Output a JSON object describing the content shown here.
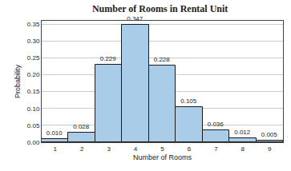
{
  "chart_data": {
    "type": "bar",
    "title": "Number of Rooms in Rental Unit",
    "x_label": "Number of Rooms",
    "y_label": "Probability",
    "categories": [
      "1",
      "2",
      "3",
      "4",
      "5",
      "6",
      "7",
      "8",
      "9"
    ],
    "values": [
      0.01,
      0.028,
      0.229,
      0.347,
      0.228,
      0.105,
      0.036,
      0.012,
      0.005
    ],
    "value_labels": [
      "0.010",
      "0.028",
      "0.229",
      "0.347",
      "0.228",
      "0.105",
      "0.036",
      "0.012",
      "0.005"
    ],
    "color": "#a9cce8",
    "ylim": [
      0,
      0.36
    ],
    "yticks": [
      {
        "value": 0,
        "label": "0.00"
      },
      {
        "value": 0.05,
        "label": "0.05"
      },
      {
        "value": 0.1,
        "label": "0.10"
      },
      {
        "value": 0.15,
        "label": "0.15"
      },
      {
        "value": 0.2,
        "label": "0.20"
      },
      {
        "value": 0.25,
        "label": "0.25"
      },
      {
        "value": 0.3,
        "label": "0.30"
      },
      {
        "value": 0.35,
        "label": "0.35"
      }
    ],
    "grid": true,
    "data_labels": true
  }
}
